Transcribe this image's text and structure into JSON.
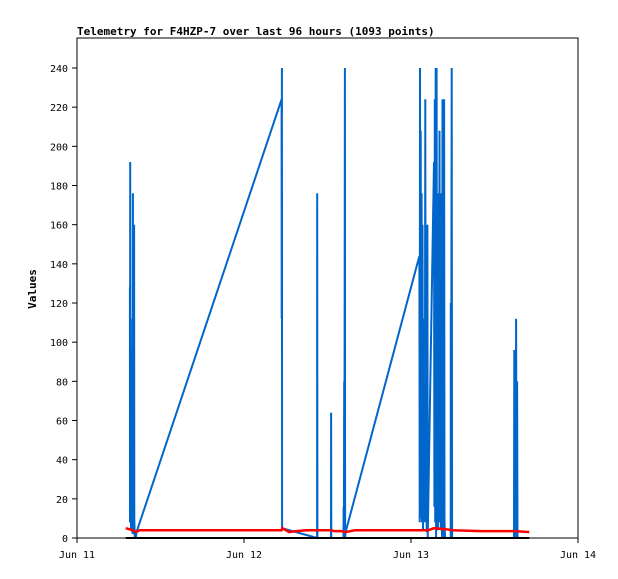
{
  "chart_data": {
    "type": "line",
    "title": "Telemetry for F4HZP-7 over last 96 hours (1093 points)",
    "xlabel": "",
    "ylabel": "Values",
    "xlim": [
      0,
      72
    ],
    "ylim": [
      0,
      255
    ],
    "x_unit": "hours since Jun 11 00:00",
    "x_ticks": [
      {
        "value": 0,
        "label": "Jun 11"
      },
      {
        "value": 24,
        "label": "Jun 12"
      },
      {
        "value": 48,
        "label": "Jun 13"
      },
      {
        "value": 72,
        "label": "Jun 14"
      }
    ],
    "y_ticks": [
      0,
      20,
      40,
      60,
      80,
      100,
      120,
      140,
      160,
      180,
      200,
      220,
      240
    ],
    "grid": false,
    "colors": {
      "series_blue": "#0066cc",
      "series_red": "#ff0000",
      "series_black": "#000000",
      "axis": "#000000"
    },
    "series": [
      {
        "color": "#0066cc",
        "points": [
          [
            7.6,
            128
          ],
          [
            7.62,
            8
          ],
          [
            7.65,
            192
          ],
          [
            7.68,
            10
          ],
          [
            7.72,
            112
          ],
          [
            7.76,
            5
          ],
          [
            7.8,
            96
          ],
          [
            7.84,
            8
          ],
          [
            7.88,
            64
          ],
          [
            7.92,
            3
          ],
          [
            7.96,
            16
          ],
          [
            8.0,
            2
          ],
          [
            8.04,
            176
          ],
          [
            8.08,
            6
          ],
          [
            8.12,
            128
          ],
          [
            8.16,
            4
          ],
          [
            8.2,
            160
          ],
          [
            8.24,
            10
          ],
          [
            8.3,
            0
          ],
          [
            8.34,
            4
          ],
          [
            8.45,
            0
          ],
          [
            8.55,
            3
          ],
          [
            29.4,
            224
          ],
          [
            29.42,
            112
          ],
          [
            29.45,
            240
          ],
          [
            29.48,
            5
          ],
          [
            34.5,
            0
          ],
          [
            34.52,
            176
          ],
          [
            34.55,
            0
          ],
          [
            36.5,
            0
          ],
          [
            36.52,
            64
          ],
          [
            36.55,
            0
          ],
          [
            38.3,
            0
          ],
          [
            38.32,
            16
          ],
          [
            38.35,
            0
          ],
          [
            38.4,
            80
          ],
          [
            38.43,
            0
          ],
          [
            38.5,
            240
          ],
          [
            38.53,
            0
          ],
          [
            38.6,
            3
          ],
          [
            49.2,
            144
          ],
          [
            49.25,
            8
          ],
          [
            49.3,
            240
          ],
          [
            49.35,
            10
          ],
          [
            49.4,
            208
          ],
          [
            49.45,
            16
          ],
          [
            49.52,
            176
          ],
          [
            49.58,
            8
          ],
          [
            49.65,
            160
          ],
          [
            49.72,
            4
          ],
          [
            49.8,
            96
          ],
          [
            49.86,
            16
          ],
          [
            49.92,
            112
          ],
          [
            49.98,
            8
          ],
          [
            50.05,
            224
          ],
          [
            50.1,
            16
          ],
          [
            50.2,
            128
          ],
          [
            50.26,
            3
          ],
          [
            50.35,
            160
          ],
          [
            50.4,
            0
          ],
          [
            51.3,
            192
          ],
          [
            51.36,
            16
          ],
          [
            51.42,
            224
          ],
          [
            51.48,
            8
          ],
          [
            51.55,
            240
          ],
          [
            51.6,
            0
          ],
          [
            51.68,
            240
          ],
          [
            51.74,
            16
          ],
          [
            51.8,
            176
          ],
          [
            51.86,
            4
          ],
          [
            51.92,
            32
          ],
          [
            51.98,
            64
          ],
          [
            52.04,
            16
          ],
          [
            52.1,
            208
          ],
          [
            52.16,
            8
          ],
          [
            52.22,
            176
          ],
          [
            52.28,
            4
          ],
          [
            52.34,
            160
          ],
          [
            52.4,
            96
          ],
          [
            52.46,
            0
          ],
          [
            52.52,
            224
          ],
          [
            52.58,
            16
          ],
          [
            52.64,
            96
          ],
          [
            52.7,
            0
          ],
          [
            52.76,
            224
          ],
          [
            52.82,
            8
          ],
          [
            52.9,
            0
          ],
          [
            53.7,
            0
          ],
          [
            53.72,
            120
          ],
          [
            53.75,
            0
          ],
          [
            53.85,
            240
          ],
          [
            53.9,
            0
          ],
          [
            62.8,
            0
          ],
          [
            62.85,
            96
          ],
          [
            62.9,
            0
          ],
          [
            62.95,
            96
          ],
          [
            63.0,
            16
          ],
          [
            63.05,
            8
          ],
          [
            63.1,
            112
          ],
          [
            63.15,
            40
          ],
          [
            63.2,
            0
          ],
          [
            63.25,
            80
          ],
          [
            63.3,
            0
          ]
        ]
      },
      {
        "color": "#ff0000",
        "points": [
          [
            7.0,
            5
          ],
          [
            8.0,
            4
          ],
          [
            8.5,
            3
          ],
          [
            9.0,
            4
          ],
          [
            12.0,
            4
          ],
          [
            16.0,
            4
          ],
          [
            20.0,
            4
          ],
          [
            24.0,
            4
          ],
          [
            28.0,
            4
          ],
          [
            29.4,
            4
          ],
          [
            29.5,
            5
          ],
          [
            30.0,
            4
          ],
          [
            30.5,
            3
          ],
          [
            31.5,
            3.5
          ],
          [
            33.0,
            4
          ],
          [
            35.0,
            4
          ],
          [
            36.5,
            4
          ],
          [
            37.0,
            3.5
          ],
          [
            38.0,
            3.5
          ],
          [
            38.6,
            3
          ],
          [
            40.0,
            4
          ],
          [
            44.0,
            4
          ],
          [
            48.0,
            4
          ],
          [
            49.5,
            4
          ],
          [
            50.5,
            4
          ],
          [
            51.3,
            5
          ],
          [
            53.0,
            4.5
          ],
          [
            54.0,
            4
          ],
          [
            58.0,
            3.5
          ],
          [
            63.0,
            3.5
          ],
          [
            65.0,
            3
          ]
        ]
      },
      {
        "color": "#000000",
        "points": [
          [
            7.0,
            0
          ],
          [
            65.0,
            0
          ]
        ]
      }
    ]
  }
}
